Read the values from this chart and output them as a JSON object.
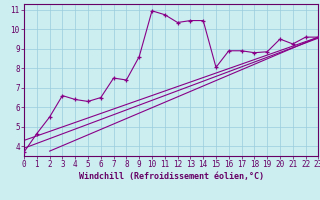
{
  "bg_color": "#cceef0",
  "line_color": "#880088",
  "grid_color": "#99ccdd",
  "text_color": "#660066",
  "xlim": [
    0,
    23
  ],
  "ylim": [
    3.5,
    11.3
  ],
  "x_ticks": [
    0,
    1,
    2,
    3,
    4,
    5,
    6,
    7,
    8,
    9,
    10,
    11,
    12,
    13,
    14,
    15,
    16,
    17,
    18,
    19,
    20,
    21,
    22,
    23
  ],
  "y_ticks": [
    4,
    5,
    6,
    7,
    8,
    9,
    10,
    11
  ],
  "xlabel": "Windchill (Refroidissement éolien,°C)",
  "main_x": [
    0,
    1,
    2,
    3,
    4,
    5,
    6,
    7,
    8,
    9,
    10,
    11,
    12,
    13,
    14,
    15,
    16,
    17,
    18,
    19,
    20,
    21,
    22,
    23
  ],
  "main_y": [
    3.7,
    4.65,
    5.5,
    6.6,
    6.4,
    6.3,
    6.5,
    7.5,
    7.4,
    8.6,
    10.95,
    10.75,
    10.35,
    10.45,
    10.45,
    8.05,
    8.9,
    8.9,
    8.8,
    8.85,
    9.5,
    9.25,
    9.6,
    9.6
  ],
  "line2_x": [
    2,
    23
  ],
  "line2_y": [
    3.75,
    9.6
  ],
  "line3_x": [
    0,
    23
  ],
  "line3_y": [
    3.9,
    9.55
  ],
  "line4_x": [
    0,
    23
  ],
  "line4_y": [
    4.3,
    9.6
  ],
  "tick_fontsize": 5.5,
  "xlabel_fontsize": 6.0
}
